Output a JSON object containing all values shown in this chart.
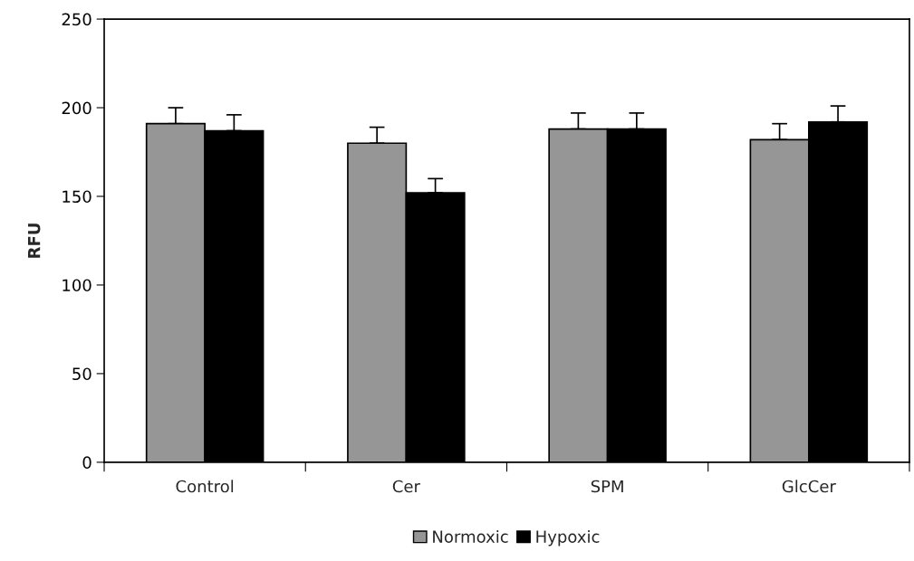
{
  "chart_data": {
    "type": "bar",
    "ylabel": "RFU",
    "categories": [
      "Control",
      "Cer",
      "SPM",
      "GlcCer"
    ],
    "series": [
      {
        "name": "Normoxic",
        "color": "#969696",
        "values": [
          191,
          180,
          188,
          182
        ],
        "errors": [
          9,
          9,
          9,
          9
        ]
      },
      {
        "name": "Hypoxic",
        "color": "#000000",
        "values": [
          187,
          152,
          188,
          192
        ],
        "errors": [
          9,
          8,
          9,
          9
        ]
      }
    ],
    "ylim": [
      0,
      250
    ],
    "yticks": [
      0,
      50,
      100,
      150,
      200,
      250
    ],
    "grid": false,
    "legend": "bottom"
  }
}
